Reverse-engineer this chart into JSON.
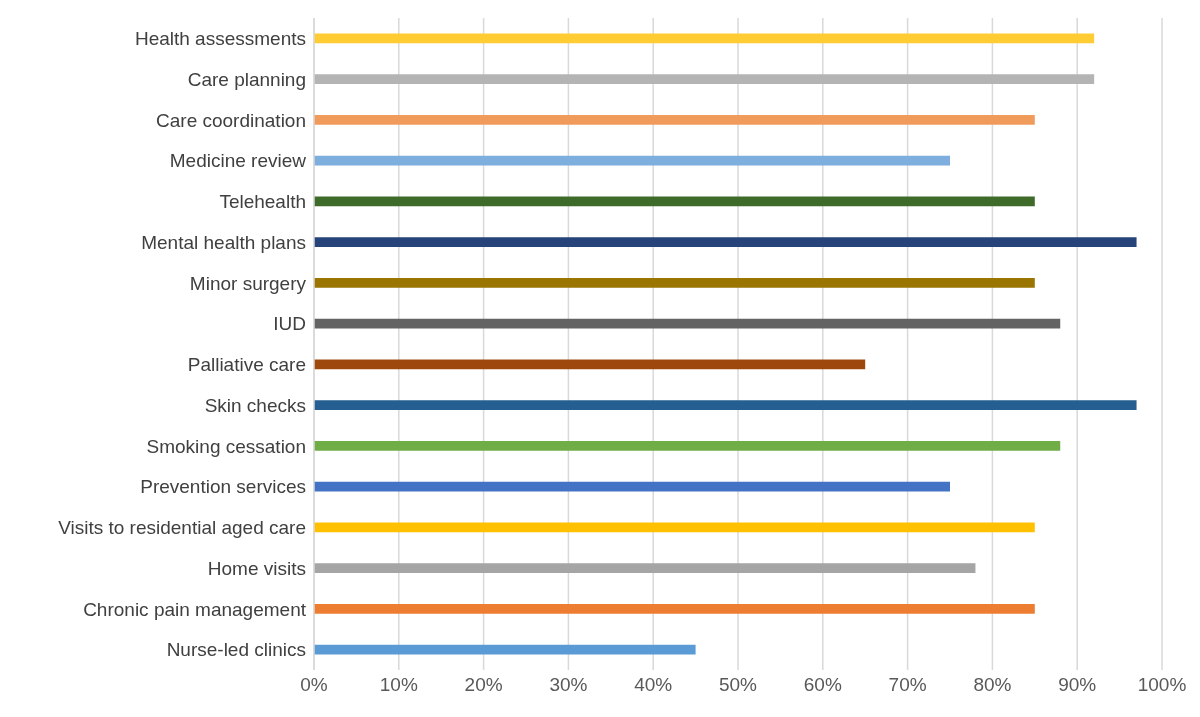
{
  "chart_data": {
    "type": "bar",
    "orientation": "horizontal",
    "categories": [
      "Health assessments",
      "Care planning",
      "Care coordination",
      "Medicine review",
      "Telehealth",
      "Mental health plans",
      "Minor surgery",
      "IUD",
      "Palliative care",
      "Skin checks",
      "Smoking cessation",
      "Prevention services",
      "Visits to residential aged care",
      "Home visits",
      "Chronic pain management",
      "Nurse-led clinics"
    ],
    "values": [
      92,
      92,
      85,
      75,
      85,
      97,
      85,
      88,
      65,
      97,
      88,
      75,
      85,
      78,
      85,
      45
    ],
    "colors": [
      "#ffcd33",
      "#b4b4b4",
      "#f09b5c",
      "#7daede",
      "#3e6b2a",
      "#26437a",
      "#9a7500",
      "#636363",
      "#9e480e",
      "#255e91",
      "#70ad47",
      "#4472c4",
      "#ffc000",
      "#a5a5a5",
      "#ed7d31",
      "#5b9bd5"
    ],
    "xlim": [
      0,
      100
    ],
    "xticks": [
      {
        "value": 0,
        "label": "0%"
      },
      {
        "value": 10,
        "label": "10%"
      },
      {
        "value": 20,
        "label": "20%"
      },
      {
        "value": 30,
        "label": "30%"
      },
      {
        "value": 40,
        "label": "40%"
      },
      {
        "value": 50,
        "label": "50%"
      },
      {
        "value": 60,
        "label": "60%"
      },
      {
        "value": 70,
        "label": "70%"
      },
      {
        "value": 80,
        "label": "80%"
      },
      {
        "value": 90,
        "label": "90%"
      },
      {
        "value": 100,
        "label": "100%"
      }
    ],
    "grid": "x"
  }
}
